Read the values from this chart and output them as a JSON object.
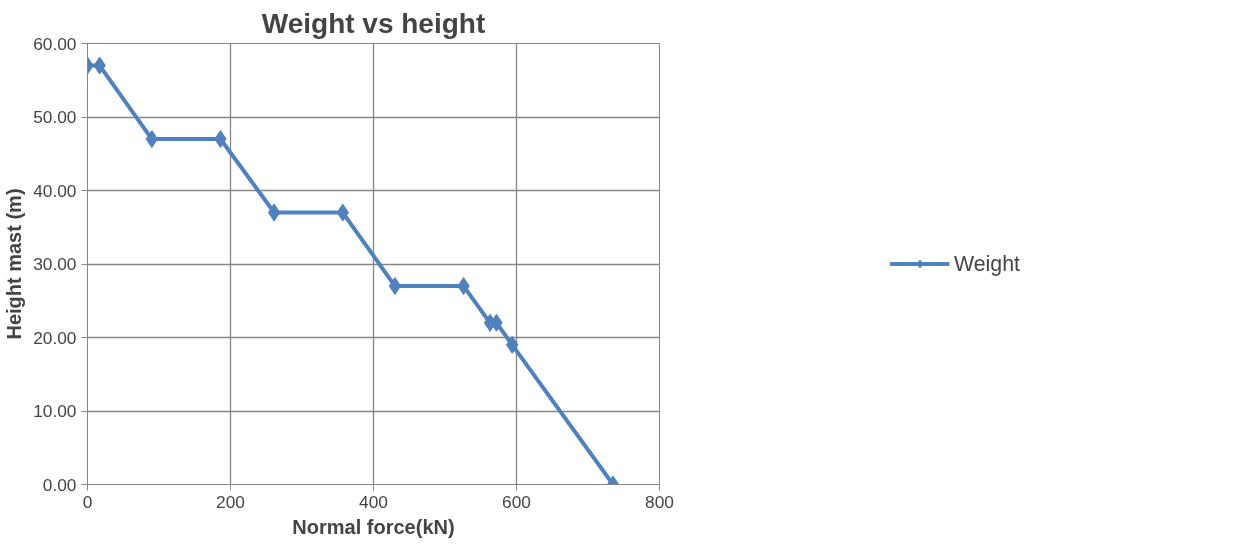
{
  "chart_data": {
    "type": "line",
    "title": "Weight vs height",
    "xlabel": "Normal force(kN)",
    "ylabel": "Height mast (m)",
    "series": [
      {
        "name": "Weight",
        "color": "#4f81bd",
        "x": [
          0,
          17,
          90,
          186,
          261,
          357,
          430,
          526,
          563,
          572,
          594,
          735
        ],
        "values": [
          57,
          57,
          47,
          47,
          37,
          37,
          27,
          27,
          22,
          22,
          19,
          0
        ]
      }
    ],
    "xlim": [
      0,
      800
    ],
    "xticks": [
      0,
      200,
      400,
      600,
      800
    ],
    "ylim": [
      0,
      60
    ],
    "yticks": [
      {
        "value": 0,
        "label": "0.00"
      },
      {
        "value": 10,
        "label": "10.00"
      },
      {
        "value": 20,
        "label": "20.00"
      },
      {
        "value": 30,
        "label": "30.00"
      },
      {
        "value": 40,
        "label": "40.00"
      },
      {
        "value": 50,
        "label": "50.00"
      },
      {
        "value": 60,
        "label": "60.00"
      }
    ],
    "grid": true,
    "legend": "right",
    "marker": "diamond",
    "line_style": "solid"
  }
}
